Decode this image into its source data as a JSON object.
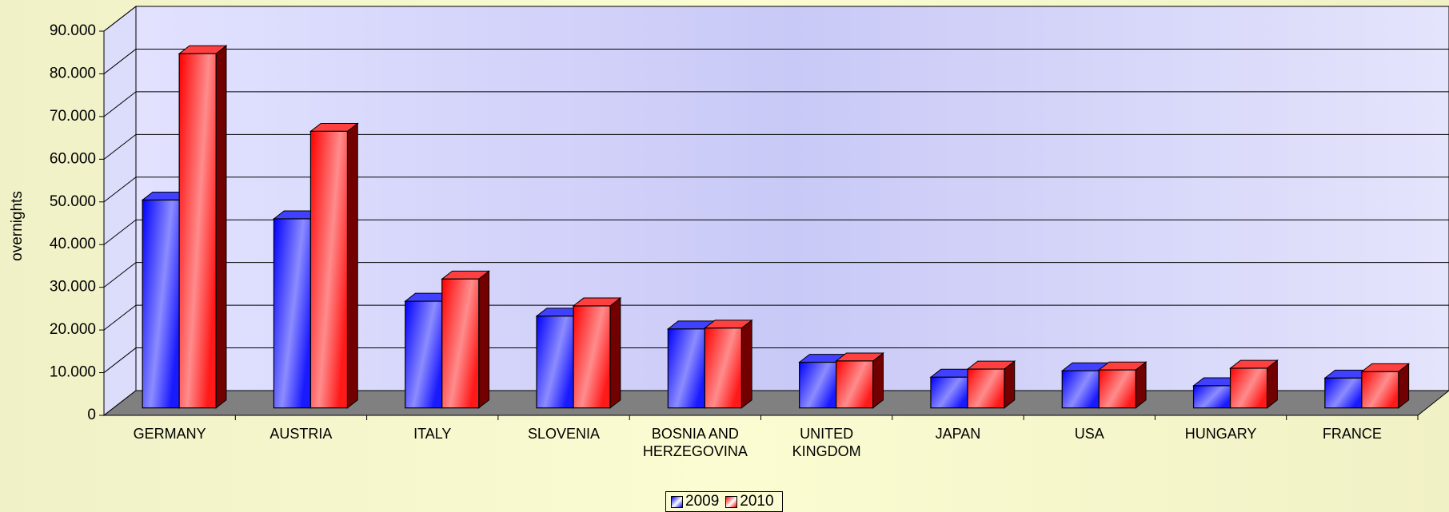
{
  "chart_data": {
    "type": "bar3d",
    "y_label": "overnights",
    "categories": [
      "GERMANY",
      "AUSTRIA",
      "ITALY",
      "SLOVENIA",
      "BOSNIA AND HERZEGOVINA",
      "UNITED KINGDOM",
      "JAPAN",
      "USA",
      "HUNGARY",
      "FRANCE"
    ],
    "series": [
      {
        "name": "2009",
        "color": "#0000ff",
        "values": [
          48700,
          44300,
          25000,
          21500,
          18500,
          10700,
          7200,
          8700,
          5200,
          7000
        ]
      },
      {
        "name": "2010",
        "color": "#ff0000",
        "values": [
          83000,
          64800,
          30200,
          23900,
          18700,
          11000,
          9100,
          8900,
          9300,
          8500
        ]
      }
    ],
    "ylim": [
      0,
      90000
    ],
    "yticks": [
      0,
      {
        "value": 10000,
        "label": "10.000"
      },
      {
        "value": 20000,
        "label": "20.000"
      },
      {
        "value": 30000,
        "label": "30.000"
      },
      {
        "value": 40000,
        "label": "40.000"
      },
      {
        "value": 50000,
        "label": "50.000"
      },
      {
        "value": 60000,
        "label": "60.000"
      },
      {
        "value": 70000,
        "label": "70.000"
      },
      {
        "value": 80000,
        "label": "80.000"
      },
      {
        "value": 90000,
        "label": "90.000"
      }
    ],
    "grid": true,
    "legend": "bottom"
  }
}
